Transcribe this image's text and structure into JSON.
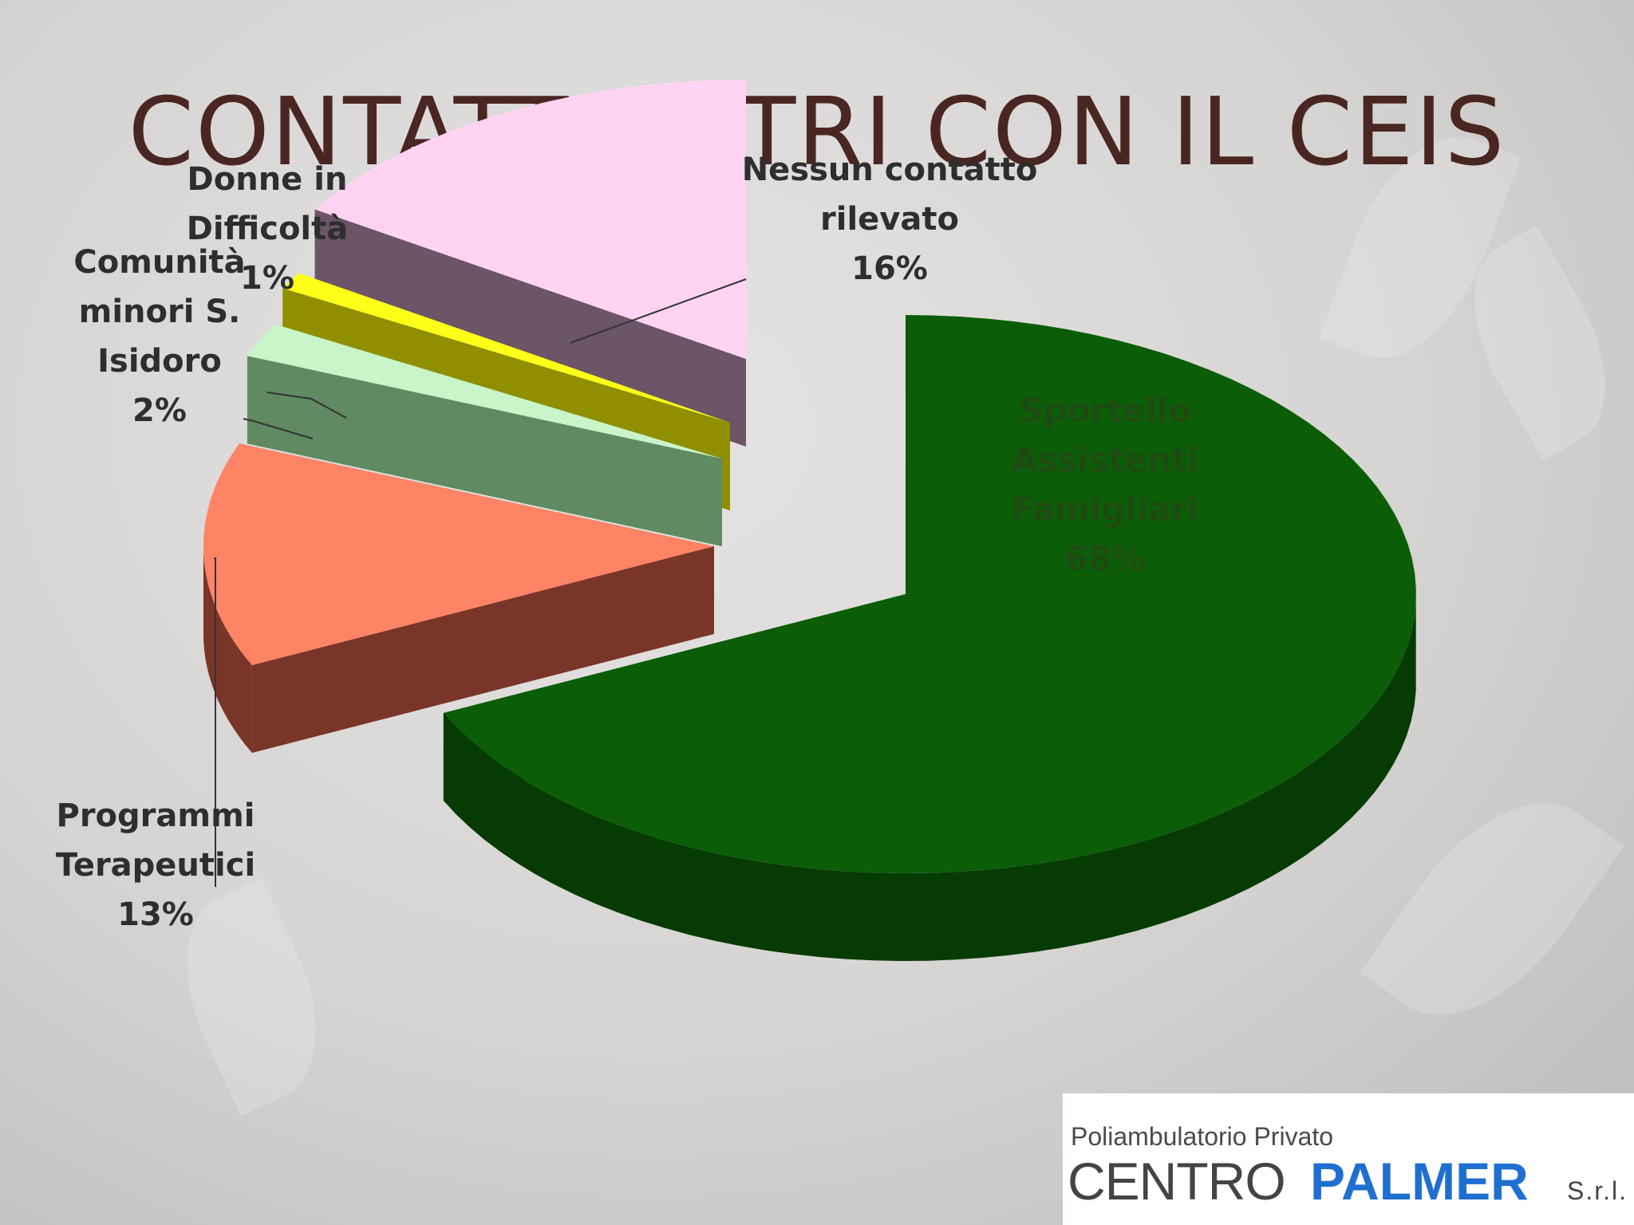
{
  "title": "CONTATTI ALTRI CON IL CEIS",
  "chart_data": {
    "type": "pie",
    "title": "CONTATTI ALTRI CON IL CEIS",
    "slices": [
      {
        "label_lines": [
          "Sportello",
          "Assistenti",
          "Famigliari"
        ],
        "pct": "68%",
        "value": 68,
        "color": "#0b5e07",
        "side": "#063b04"
      },
      {
        "label_lines": [
          "Programmi",
          "Terapeutici"
        ],
        "pct": "13%",
        "value": 13,
        "color": "#ff8466",
        "side": "#7a3529"
      },
      {
        "label_lines": [
          "Comunità",
          "minori S.",
          "Isidoro"
        ],
        "pct": "2%",
        "value": 2,
        "color": "#c9f5c9",
        "side": "#5f8a62"
      },
      {
        "label_lines": [
          "Donne in",
          "Difficoltà"
        ],
        "pct": "1%",
        "value": 1,
        "color": "#ffff1a",
        "side": "#8f8f00"
      },
      {
        "label_lines": [
          "Nessun contatto",
          "rilevato"
        ],
        "pct": "16%",
        "value": 16,
        "color": "#ffd3f1",
        "side": "#6b5566"
      }
    ]
  },
  "logo": {
    "line1": "Poliambulatorio Privato",
    "line2a": "CENTRO",
    "line2b": "PALMER",
    "line2c": "S.r.l."
  }
}
